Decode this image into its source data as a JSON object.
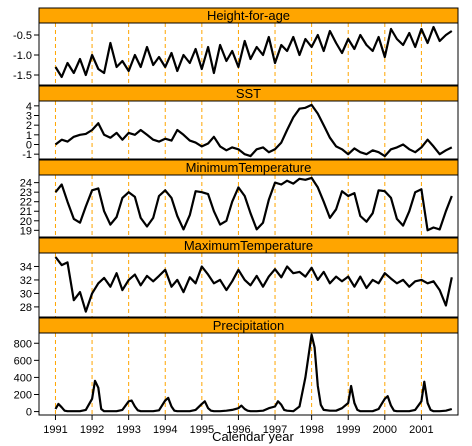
{
  "colors": {
    "strip": "#FFA500",
    "strip_border": "#000000",
    "panel_border": "#000000",
    "line": "#000000",
    "year_guides": "#FFA500",
    "background": "#FFFFFF"
  },
  "chart_data": {
    "type": "line",
    "layout": "stacked-panels",
    "xlabel": "Calendar year",
    "x_ticks": [
      "1991",
      "1992",
      "1993",
      "1994",
      "1995",
      "1996",
      "1997",
      "1998",
      "1999",
      "2000",
      "2001"
    ],
    "xlim": [
      1990.55,
      2002.0
    ],
    "guides": "dashed vertical line at each January",
    "panels": [
      {
        "title": "Height-for-age",
        "ylim": [
          -1.75,
          -0.2
        ],
        "y_ticks": [
          "-0.5",
          "-1.0",
          "-1.5"
        ],
        "y_tick_values": [
          -0.5,
          -1.0,
          -1.5
        ],
        "x": [
          1991.0,
          1991.17,
          1991.33,
          1991.5,
          1991.67,
          1991.83,
          1992.0,
          1992.17,
          1992.33,
          1992.5,
          1992.67,
          1992.83,
          1993.0,
          1993.17,
          1993.33,
          1993.5,
          1993.67,
          1993.83,
          1994.0,
          1994.17,
          1994.33,
          1994.5,
          1994.67,
          1994.83,
          1995.0,
          1995.17,
          1995.33,
          1995.5,
          1995.67,
          1995.83,
          1996.0,
          1996.17,
          1996.33,
          1996.5,
          1996.67,
          1996.83,
          1997.0,
          1997.17,
          1997.33,
          1997.5,
          1997.67,
          1997.83,
          1998.0,
          1998.17,
          1998.33,
          1998.5,
          1998.67,
          1998.83,
          1999.0,
          1999.17,
          1999.33,
          1999.5,
          1999.67,
          1999.83,
          2000.0,
          2000.17,
          2000.33,
          2000.5,
          2000.67,
          2000.83,
          2001.0,
          2001.17,
          2001.33,
          2001.5,
          2001.67,
          2001.83
        ],
        "values": [
          -1.3,
          -1.55,
          -1.2,
          -1.45,
          -1.1,
          -1.5,
          -1.0,
          -1.35,
          -1.45,
          -0.7,
          -1.3,
          -1.15,
          -1.4,
          -1.0,
          -1.3,
          -0.8,
          -1.25,
          -1.05,
          -1.3,
          -0.95,
          -1.4,
          -1.0,
          -1.2,
          -0.85,
          -1.35,
          -0.8,
          -1.45,
          -0.75,
          -1.15,
          -0.9,
          -1.3,
          -0.65,
          -1.1,
          -0.8,
          -1.0,
          -0.55,
          -1.2,
          -0.75,
          -0.9,
          -0.55,
          -1.0,
          -0.6,
          -0.8,
          -0.5,
          -0.9,
          -0.4,
          -0.7,
          -0.95,
          -0.6,
          -0.85,
          -0.5,
          -0.75,
          -0.9,
          -0.55,
          -1.05,
          -0.35,
          -0.6,
          -0.75,
          -0.45,
          -0.8,
          -0.35,
          -0.7,
          -0.3,
          -0.65,
          -0.5,
          -0.4
        ]
      },
      {
        "title": "SST",
        "ylim": [
          -1.5,
          4.5
        ],
        "y_ticks": [
          "4",
          "3",
          "2",
          "1",
          "0",
          "-1"
        ],
        "y_tick_values": [
          4,
          3,
          2,
          1,
          0,
          -1
        ],
        "x": [
          1991.0,
          1991.17,
          1991.33,
          1991.5,
          1991.67,
          1991.83,
          1992.0,
          1992.17,
          1992.33,
          1992.5,
          1992.67,
          1992.83,
          1993.0,
          1993.17,
          1993.33,
          1993.5,
          1993.67,
          1993.83,
          1994.0,
          1994.17,
          1994.33,
          1994.5,
          1994.67,
          1994.83,
          1995.0,
          1995.17,
          1995.33,
          1995.5,
          1995.67,
          1995.83,
          1996.0,
          1996.17,
          1996.33,
          1996.5,
          1996.67,
          1996.83,
          1997.0,
          1997.17,
          1997.33,
          1997.5,
          1997.67,
          1997.83,
          1998.0,
          1998.17,
          1998.33,
          1998.5,
          1998.67,
          1998.83,
          1999.0,
          1999.17,
          1999.33,
          1999.5,
          1999.67,
          1999.83,
          2000.0,
          2000.17,
          2000.33,
          2000.5,
          2000.67,
          2000.83,
          2001.0,
          2001.17,
          2001.33,
          2001.5,
          2001.67,
          2001.83
        ],
        "values": [
          0.0,
          0.5,
          0.3,
          0.8,
          1.0,
          1.1,
          1.5,
          2.2,
          1.0,
          0.7,
          1.2,
          0.5,
          1.2,
          1.0,
          1.5,
          1.0,
          0.5,
          0.3,
          0.6,
          0.4,
          1.5,
          1.0,
          0.4,
          0.2,
          -0.2,
          0.1,
          0.8,
          -0.2,
          -0.6,
          -0.3,
          -0.5,
          -1.0,
          -1.2,
          -0.5,
          -0.3,
          -0.8,
          -0.5,
          0.2,
          1.5,
          2.8,
          3.7,
          3.8,
          4.1,
          3.2,
          2.0,
          0.7,
          -0.2,
          -0.5,
          -1.0,
          -0.4,
          -0.8,
          -1.0,
          -0.6,
          -0.8,
          -1.2,
          -0.5,
          -0.3,
          0.0,
          -0.5,
          -0.8,
          -0.3,
          0.5,
          -0.2,
          -1.0,
          -0.6,
          -0.3
        ]
      },
      {
        "title": "MinimumTemperature",
        "ylim": [
          18.3,
          24.8
        ],
        "y_ticks": [
          "24",
          "23",
          "22",
          "21",
          "20",
          "19"
        ],
        "y_tick_values": [
          24,
          23,
          22,
          21,
          20,
          19
        ],
        "x": [
          1991.0,
          1991.17,
          1991.33,
          1991.5,
          1991.67,
          1991.83,
          1992.0,
          1992.17,
          1992.33,
          1992.5,
          1992.67,
          1992.83,
          1993.0,
          1993.17,
          1993.33,
          1993.5,
          1993.67,
          1993.83,
          1994.0,
          1994.17,
          1994.33,
          1994.5,
          1994.67,
          1994.83,
          1995.0,
          1995.17,
          1995.33,
          1995.5,
          1995.67,
          1995.83,
          1996.0,
          1996.17,
          1996.33,
          1996.5,
          1996.67,
          1996.83,
          1997.0,
          1997.17,
          1997.33,
          1997.5,
          1997.67,
          1997.83,
          1998.0,
          1998.17,
          1998.33,
          1998.5,
          1998.67,
          1998.83,
          1999.0,
          1999.17,
          1999.33,
          1999.5,
          1999.67,
          1999.83,
          2000.0,
          2000.17,
          2000.33,
          2000.5,
          2000.67,
          2000.83,
          2001.0,
          2001.17,
          2001.33,
          2001.5,
          2001.67,
          2001.83
        ],
        "values": [
          23.0,
          23.8,
          22.0,
          20.2,
          19.8,
          21.5,
          23.2,
          23.4,
          21.0,
          19.6,
          20.4,
          22.4,
          23.0,
          22.5,
          20.3,
          19.4,
          20.3,
          22.6,
          23.2,
          22.4,
          20.5,
          19.1,
          20.6,
          23.1,
          23.0,
          22.8,
          21.0,
          19.6,
          20.0,
          22.0,
          23.5,
          22.6,
          20.8,
          19.1,
          19.8,
          22.2,
          24.0,
          23.8,
          24.2,
          23.9,
          24.4,
          24.3,
          24.5,
          23.5,
          22.0,
          20.3,
          21.2,
          23.1,
          22.6,
          22.9,
          20.5,
          19.9,
          20.8,
          23.2,
          23.1,
          22.4,
          20.2,
          19.5,
          21.0,
          23.0,
          23.3,
          19.0,
          19.3,
          19.1,
          21.0,
          22.6
        ]
      },
      {
        "title": "MaximumTemperature",
        "ylim": [
          26.5,
          36.0
        ],
        "y_ticks": [
          "34",
          "32",
          "30",
          "28"
        ],
        "y_tick_values": [
          34,
          32,
          30,
          28
        ],
        "x": [
          1991.0,
          1991.17,
          1991.33,
          1991.5,
          1991.67,
          1991.83,
          1992.0,
          1992.17,
          1992.33,
          1992.5,
          1992.67,
          1992.83,
          1993.0,
          1993.17,
          1993.33,
          1993.5,
          1993.67,
          1993.83,
          1994.0,
          1994.17,
          1994.33,
          1994.5,
          1994.67,
          1994.83,
          1995.0,
          1995.17,
          1995.33,
          1995.5,
          1995.67,
          1995.83,
          1996.0,
          1996.17,
          1996.33,
          1996.5,
          1996.67,
          1996.83,
          1997.0,
          1997.17,
          1997.33,
          1997.5,
          1997.67,
          1997.83,
          1998.0,
          1998.17,
          1998.33,
          1998.5,
          1998.67,
          1998.83,
          1999.0,
          1999.17,
          1999.33,
          1999.5,
          1999.67,
          1999.83,
          2000.0,
          2000.17,
          2000.33,
          2000.5,
          2000.67,
          2000.83,
          2001.0,
          2001.17,
          2001.33,
          2001.5,
          2001.67,
          2001.83
        ],
        "values": [
          35.4,
          34.2,
          34.6,
          29.0,
          30.2,
          27.3,
          30.0,
          31.5,
          32.3,
          31.0,
          33.0,
          30.5,
          32.0,
          32.8,
          31.2,
          32.6,
          31.8,
          32.6,
          33.5,
          31.0,
          32.0,
          30.2,
          32.4,
          31.5,
          34.0,
          32.8,
          31.5,
          32.0,
          30.5,
          31.8,
          33.5,
          32.0,
          31.2,
          32.6,
          31.0,
          32.5,
          33.6,
          32.4,
          34.0,
          33.0,
          33.2,
          32.5,
          33.8,
          32.0,
          33.2,
          31.5,
          32.5,
          31.8,
          32.5,
          31.0,
          32.5,
          30.8,
          32.0,
          31.5,
          33.0,
          32.2,
          31.5,
          32.0,
          31.0,
          31.8,
          32.0,
          31.5,
          31.8,
          30.5,
          28.2,
          32.4
        ]
      },
      {
        "title": "Precipitation",
        "ylim": [
          -40,
          920
        ],
        "y_ticks": [
          "800",
          "600",
          "400",
          "200",
          "0"
        ],
        "y_tick_values": [
          800,
          600,
          400,
          200,
          0
        ],
        "x": [
          1991.0,
          1991.08,
          1991.17,
          1991.25,
          1991.33,
          1991.5,
          1991.67,
          1991.83,
          1992.0,
          1992.08,
          1992.17,
          1992.25,
          1992.33,
          1992.5,
          1992.67,
          1992.83,
          1993.0,
          1993.08,
          1993.17,
          1993.25,
          1993.33,
          1993.5,
          1993.67,
          1993.83,
          1994.0,
          1994.08,
          1994.17,
          1994.25,
          1994.33,
          1994.5,
          1994.67,
          1994.83,
          1995.0,
          1995.08,
          1995.17,
          1995.25,
          1995.33,
          1995.5,
          1995.67,
          1995.83,
          1996.0,
          1996.08,
          1996.17,
          1996.25,
          1996.33,
          1996.5,
          1996.67,
          1996.83,
          1997.0,
          1997.08,
          1997.17,
          1997.25,
          1997.33,
          1997.5,
          1997.67,
          1997.83,
          1998.0,
          1998.08,
          1998.17,
          1998.25,
          1998.33,
          1998.5,
          1998.67,
          1998.83,
          1999.0,
          1999.08,
          1999.17,
          1999.25,
          1999.33,
          1999.5,
          1999.67,
          1999.83,
          2000.0,
          2000.08,
          2000.17,
          2000.25,
          2000.33,
          2000.5,
          2000.67,
          2000.83,
          2001.0,
          2001.08,
          2001.17,
          2001.25,
          2001.33,
          2001.5,
          2001.67,
          2001.83
        ],
        "values": [
          30,
          90,
          50,
          10,
          5,
          5,
          5,
          20,
          150,
          360,
          280,
          30,
          5,
          5,
          5,
          20,
          120,
          130,
          60,
          15,
          5,
          5,
          5,
          15,
          130,
          160,
          60,
          10,
          5,
          5,
          5,
          20,
          90,
          120,
          40,
          10,
          5,
          5,
          10,
          20,
          40,
          70,
          30,
          10,
          5,
          5,
          10,
          40,
          60,
          120,
          80,
          20,
          10,
          5,
          60,
          400,
          900,
          750,
          300,
          80,
          20,
          10,
          10,
          40,
          100,
          300,
          100,
          20,
          5,
          5,
          5,
          30,
          150,
          180,
          70,
          10,
          5,
          5,
          5,
          20,
          120,
          350,
          100,
          20,
          5,
          5,
          10,
          30
        ]
      }
    ]
  }
}
